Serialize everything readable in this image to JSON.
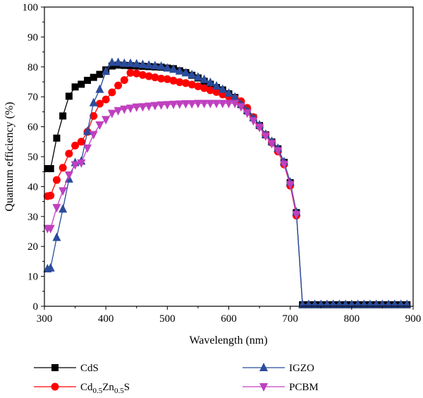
{
  "chart_data": {
    "type": "line",
    "xlabel": "Wavelength (nm)",
    "ylabel": "Quantum efficiency (%)",
    "xlim": [
      300,
      900
    ],
    "ylim": [
      0,
      100
    ],
    "xticks": [
      "300",
      "400",
      "500",
      "600",
      "700",
      "800",
      "900"
    ],
    "yticks": [
      "0",
      "10",
      "20",
      "30",
      "40",
      "50",
      "60",
      "70",
      "80",
      "90",
      "100"
    ],
    "grid": false,
    "legend_position": "bottom",
    "series": [
      {
        "name": "CdS",
        "name_parts": [
          {
            "t": "CdS",
            "s": false
          }
        ],
        "color": "#000000",
        "marker": "square",
        "x": [
          305,
          310,
          320,
          330,
          340,
          350,
          360,
          370,
          380,
          390,
          400,
          410,
          420,
          430,
          440,
          450,
          460,
          470,
          480,
          490,
          500,
          510,
          520,
          530,
          540,
          550,
          560,
          570,
          580,
          590,
          600,
          610,
          620,
          630,
          640,
          650,
          660,
          670,
          680,
          690,
          700,
          710,
          720,
          730,
          740,
          750,
          760,
          770,
          780,
          790,
          800,
          810,
          820,
          830,
          840,
          850,
          860,
          870,
          880,
          890
        ],
        "y": [
          46,
          46,
          56.2,
          63.6,
          70.2,
          73.3,
          74.2,
          75.5,
          76.5,
          77.5,
          79,
          80.3,
          80.6,
          80.5,
          80.4,
          80.3,
          80.2,
          80.1,
          80,
          79.9,
          79.6,
          79.4,
          78.7,
          78.1,
          77.2,
          76.3,
          75.2,
          74.2,
          73.1,
          72.3,
          71,
          69.8,
          67.4,
          65.3,
          63,
          60.4,
          57.3,
          54.9,
          52.6,
          48.1,
          41.3,
          31.3,
          0.5,
          0.5,
          0.5,
          0.5,
          0.5,
          0.5,
          0.5,
          0.5,
          0.5,
          0.5,
          0.5,
          0.5,
          0.5,
          0.5,
          0.5,
          0.5,
          0.5,
          0.5
        ]
      },
      {
        "name": "Cd0.5Zn0.5S",
        "name_parts": [
          {
            "t": "Cd",
            "s": false
          },
          {
            "t": "0.5",
            "s": true
          },
          {
            "t": "Zn",
            "s": false
          },
          {
            "t": "0.5",
            "s": true
          },
          {
            "t": "S",
            "s": false
          }
        ],
        "color": "#ff0000",
        "marker": "circle",
        "x": [
          305,
          310,
          320,
          330,
          340,
          350,
          360,
          370,
          380,
          390,
          400,
          410,
          420,
          430,
          440,
          450,
          460,
          470,
          480,
          490,
          500,
          510,
          520,
          530,
          540,
          550,
          560,
          570,
          580,
          590,
          600,
          610,
          620,
          630,
          640,
          650,
          660,
          670,
          680,
          690,
          700,
          710
        ],
        "y": [
          36.8,
          37,
          42.2,
          46.3,
          51,
          53.7,
          55,
          58.3,
          63.6,
          67.7,
          69.1,
          71.5,
          73.8,
          75.6,
          78,
          77.8,
          77.3,
          76.9,
          76.5,
          76.1,
          75.9,
          75.4,
          74.9,
          74.6,
          74.1,
          73.5,
          72.9,
          72.2,
          71.6,
          70.8,
          70.1,
          69.5,
          68.5,
          66.3,
          63.2,
          60.2,
          57.3,
          54.7,
          51.7,
          47.4,
          40.3,
          30.3
        ]
      },
      {
        "name": "IGZO",
        "name_parts": [
          {
            "t": "IGZO",
            "s": false
          }
        ],
        "color": "#2b4c9c",
        "marker": "triangle-up",
        "x": [
          305,
          310,
          320,
          330,
          340,
          350,
          360,
          370,
          380,
          390,
          400,
          410,
          420,
          430,
          440,
          450,
          460,
          470,
          480,
          490,
          500,
          510,
          520,
          530,
          540,
          550,
          560,
          570,
          580,
          590,
          600,
          610,
          620,
          630,
          640,
          650,
          660,
          670,
          680,
          690,
          700,
          710,
          720,
          730,
          740,
          750,
          760,
          770,
          780,
          790,
          800,
          810,
          820,
          830,
          840,
          850,
          860,
          870,
          880,
          890
        ],
        "y": [
          12.5,
          12.8,
          23,
          32.5,
          42.5,
          48,
          48.5,
          58.5,
          68,
          72.5,
          78.5,
          81.5,
          81.5,
          81.2,
          81.2,
          81,
          80.8,
          80.6,
          80.4,
          80.2,
          79.6,
          79.2,
          78.6,
          78,
          77.4,
          76.6,
          75.8,
          74.8,
          73.6,
          72.5,
          71.2,
          69.9,
          67.6,
          65.5,
          63,
          60.6,
          57.5,
          55.1,
          52.8,
          48.3,
          41.5,
          31.5,
          0.6,
          0.6,
          0.6,
          0.6,
          0.6,
          0.6,
          0.6,
          0.6,
          0.6,
          0.6,
          0.6,
          0.6,
          0.6,
          0.6,
          0.6,
          0.6,
          0.6,
          0.6
        ]
      },
      {
        "name": "PCBM",
        "name_parts": [
          {
            "t": "PCBM",
            "s": false
          }
        ],
        "color": "#bf40bf",
        "marker": "triangle-down",
        "x": [
          305,
          310,
          320,
          330,
          340,
          350,
          360,
          370,
          380,
          390,
          400,
          410,
          420,
          430,
          440,
          450,
          460,
          470,
          480,
          490,
          500,
          510,
          520,
          530,
          540,
          550,
          560,
          570,
          580,
          590,
          600,
          610,
          620,
          630,
          640,
          650,
          660,
          670,
          680,
          690,
          700,
          710
        ],
        "y": [
          26,
          26,
          33,
          38.6,
          43.9,
          47.3,
          47.9,
          52.9,
          57.4,
          60.6,
          62.4,
          64.5,
          65.4,
          65.9,
          66.2,
          66.6,
          66.7,
          66.9,
          67.1,
          67.3,
          67.4,
          67.5,
          67.6,
          67.7,
          67.7,
          67.8,
          67.8,
          67.8,
          67.8,
          67.8,
          67.8,
          67.8,
          66.7,
          64.6,
          62,
          59.8,
          56.9,
          54.4,
          52,
          47.5,
          40.7,
          30.7
        ]
      }
    ]
  }
}
